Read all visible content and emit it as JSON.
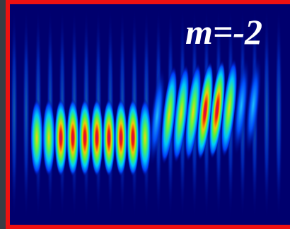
{
  "label": "m=-2"
}
